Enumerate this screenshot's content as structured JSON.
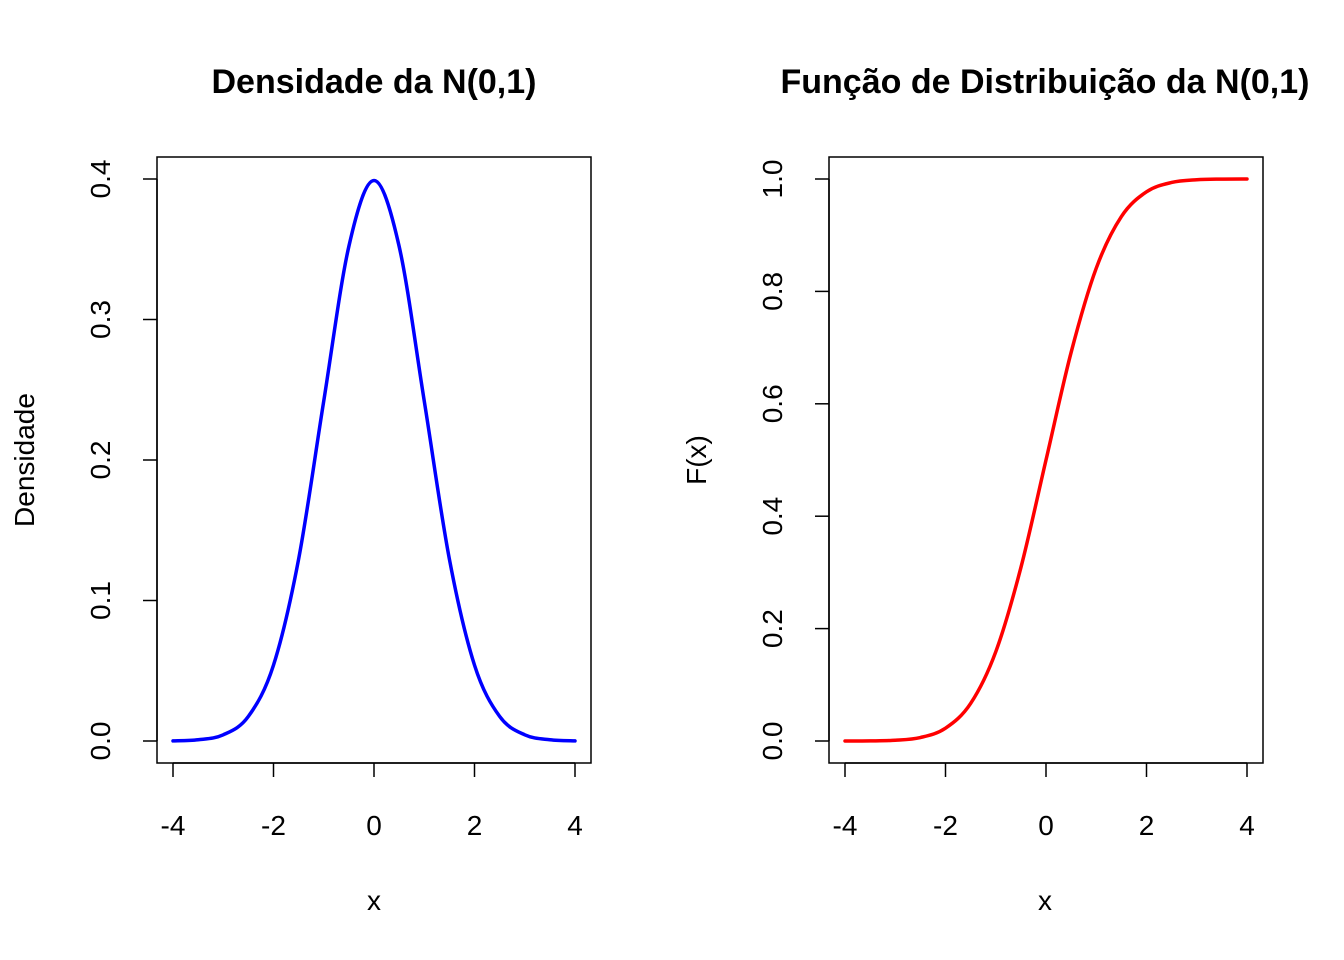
{
  "chart_data": [
    {
      "type": "line",
      "title": "Densidade da N(0,1)",
      "xlabel": "x",
      "ylabel": "Densidade",
      "xlim": [
        -4,
        4
      ],
      "ylim": [
        0,
        0.4
      ],
      "x_ticks": [
        -4,
        -2,
        0,
        2,
        4
      ],
      "x_tick_labels": [
        "-4",
        "-2",
        "0",
        "2",
        "4"
      ],
      "y_ticks": [
        0,
        0.1,
        0.2,
        0.3,
        0.4
      ],
      "y_tick_labels": [
        "0.0",
        "0.1",
        "0.2",
        "0.3",
        "0.4"
      ],
      "grid": false,
      "series": [
        {
          "color": "#0000ff",
          "x": [
            -4,
            -3.5,
            -3,
            -2.5,
            -2,
            -1.5,
            -1,
            -0.5,
            0,
            0.5,
            1,
            1.5,
            2,
            2.5,
            3,
            3.5,
            4
          ],
          "y": [
            0.0001,
            0.0009,
            0.0044,
            0.0175,
            0.054,
            0.1295,
            0.242,
            0.3521,
            0.3989,
            0.3521,
            0.242,
            0.1295,
            0.054,
            0.0175,
            0.0044,
            0.0009,
            0.0001
          ]
        }
      ]
    },
    {
      "type": "line",
      "title": "Função de Distribuição da N(0,1)",
      "xlabel": "x",
      "ylabel": "F(x)",
      "xlim": [
        -4,
        4
      ],
      "ylim": [
        0,
        1
      ],
      "x_ticks": [
        -4,
        -2,
        0,
        2,
        4
      ],
      "x_tick_labels": [
        "-4",
        "-2",
        "0",
        "2",
        "4"
      ],
      "y_ticks": [
        0,
        0.2,
        0.4,
        0.6,
        0.8,
        1.0
      ],
      "y_tick_labels": [
        "0.0",
        "0.2",
        "0.4",
        "0.6",
        "0.8",
        "1.0"
      ],
      "grid": false,
      "series": [
        {
          "color": "#ff0000",
          "x": [
            -4,
            -3.5,
            -3,
            -2.5,
            -2,
            -1.5,
            -1,
            -0.5,
            0,
            0.5,
            1,
            1.5,
            2,
            2.5,
            3,
            3.5,
            4
          ],
          "y": [
            0.0,
            0.0002,
            0.0013,
            0.0062,
            0.0228,
            0.0668,
            0.1587,
            0.3085,
            0.5,
            0.6915,
            0.8413,
            0.9332,
            0.9772,
            0.9938,
            0.9987,
            0.9998,
            1.0
          ]
        }
      ]
    }
  ]
}
